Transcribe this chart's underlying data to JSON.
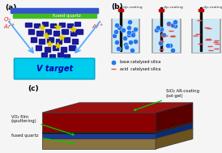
{
  "bg_color": "#f5f5f5",
  "panel_a": {
    "label": "(a)",
    "bg_color": "#ddeeff",
    "blue_bar_color": "#3355cc",
    "green_bar_color": "#44bb22",
    "fused_quartz_text": "fused quartz",
    "target_color": "#00ccee",
    "target_border": "#00aacc",
    "target_text": "V target",
    "target_text_color": "#0000aa",
    "ar_ion_color": "#dd2222",
    "o2_color": "#dd2222",
    "particle_blue": "#1a1a99",
    "particle_yellow": "#ddcc00",
    "beam_color": "#55aaff"
  },
  "panel_b": {
    "label": "(b)",
    "beaker_bg": "#cce8f5",
    "beaker_border": "#aaaaaa",
    "blue_dot_color": "#2277ee",
    "red_line_color": "#ee4444",
    "rod_color": "#111111",
    "rod_top_color": "#cc0000",
    "legend_blue_text": "base catalysed silica",
    "legend_red_text": "acid  catalysed silica",
    "dip_coating_text": "dip-coating"
  },
  "panel_c": {
    "label": "(c)",
    "sio2_front": "#8b0000",
    "sio2_side": "#5a0000",
    "sio2_top": "#9b1111",
    "black_front": "#111111",
    "black_side": "#080808",
    "black_top": "#222222",
    "vo2_front": "#1a3a99",
    "vo2_side": "#0a2a77",
    "vo2_top": "#2244aa",
    "quartz_front": "#8b7340",
    "quartz_side": "#6b5320",
    "quartz_top": "#9b8350",
    "label_sio2": "SiO₂ AR-coating\n(sol-gel)",
    "label_vo2": "VO₂ film\n(sputtering)",
    "label_quartz": "fused quartz",
    "arrow_color": "#00cc00"
  }
}
